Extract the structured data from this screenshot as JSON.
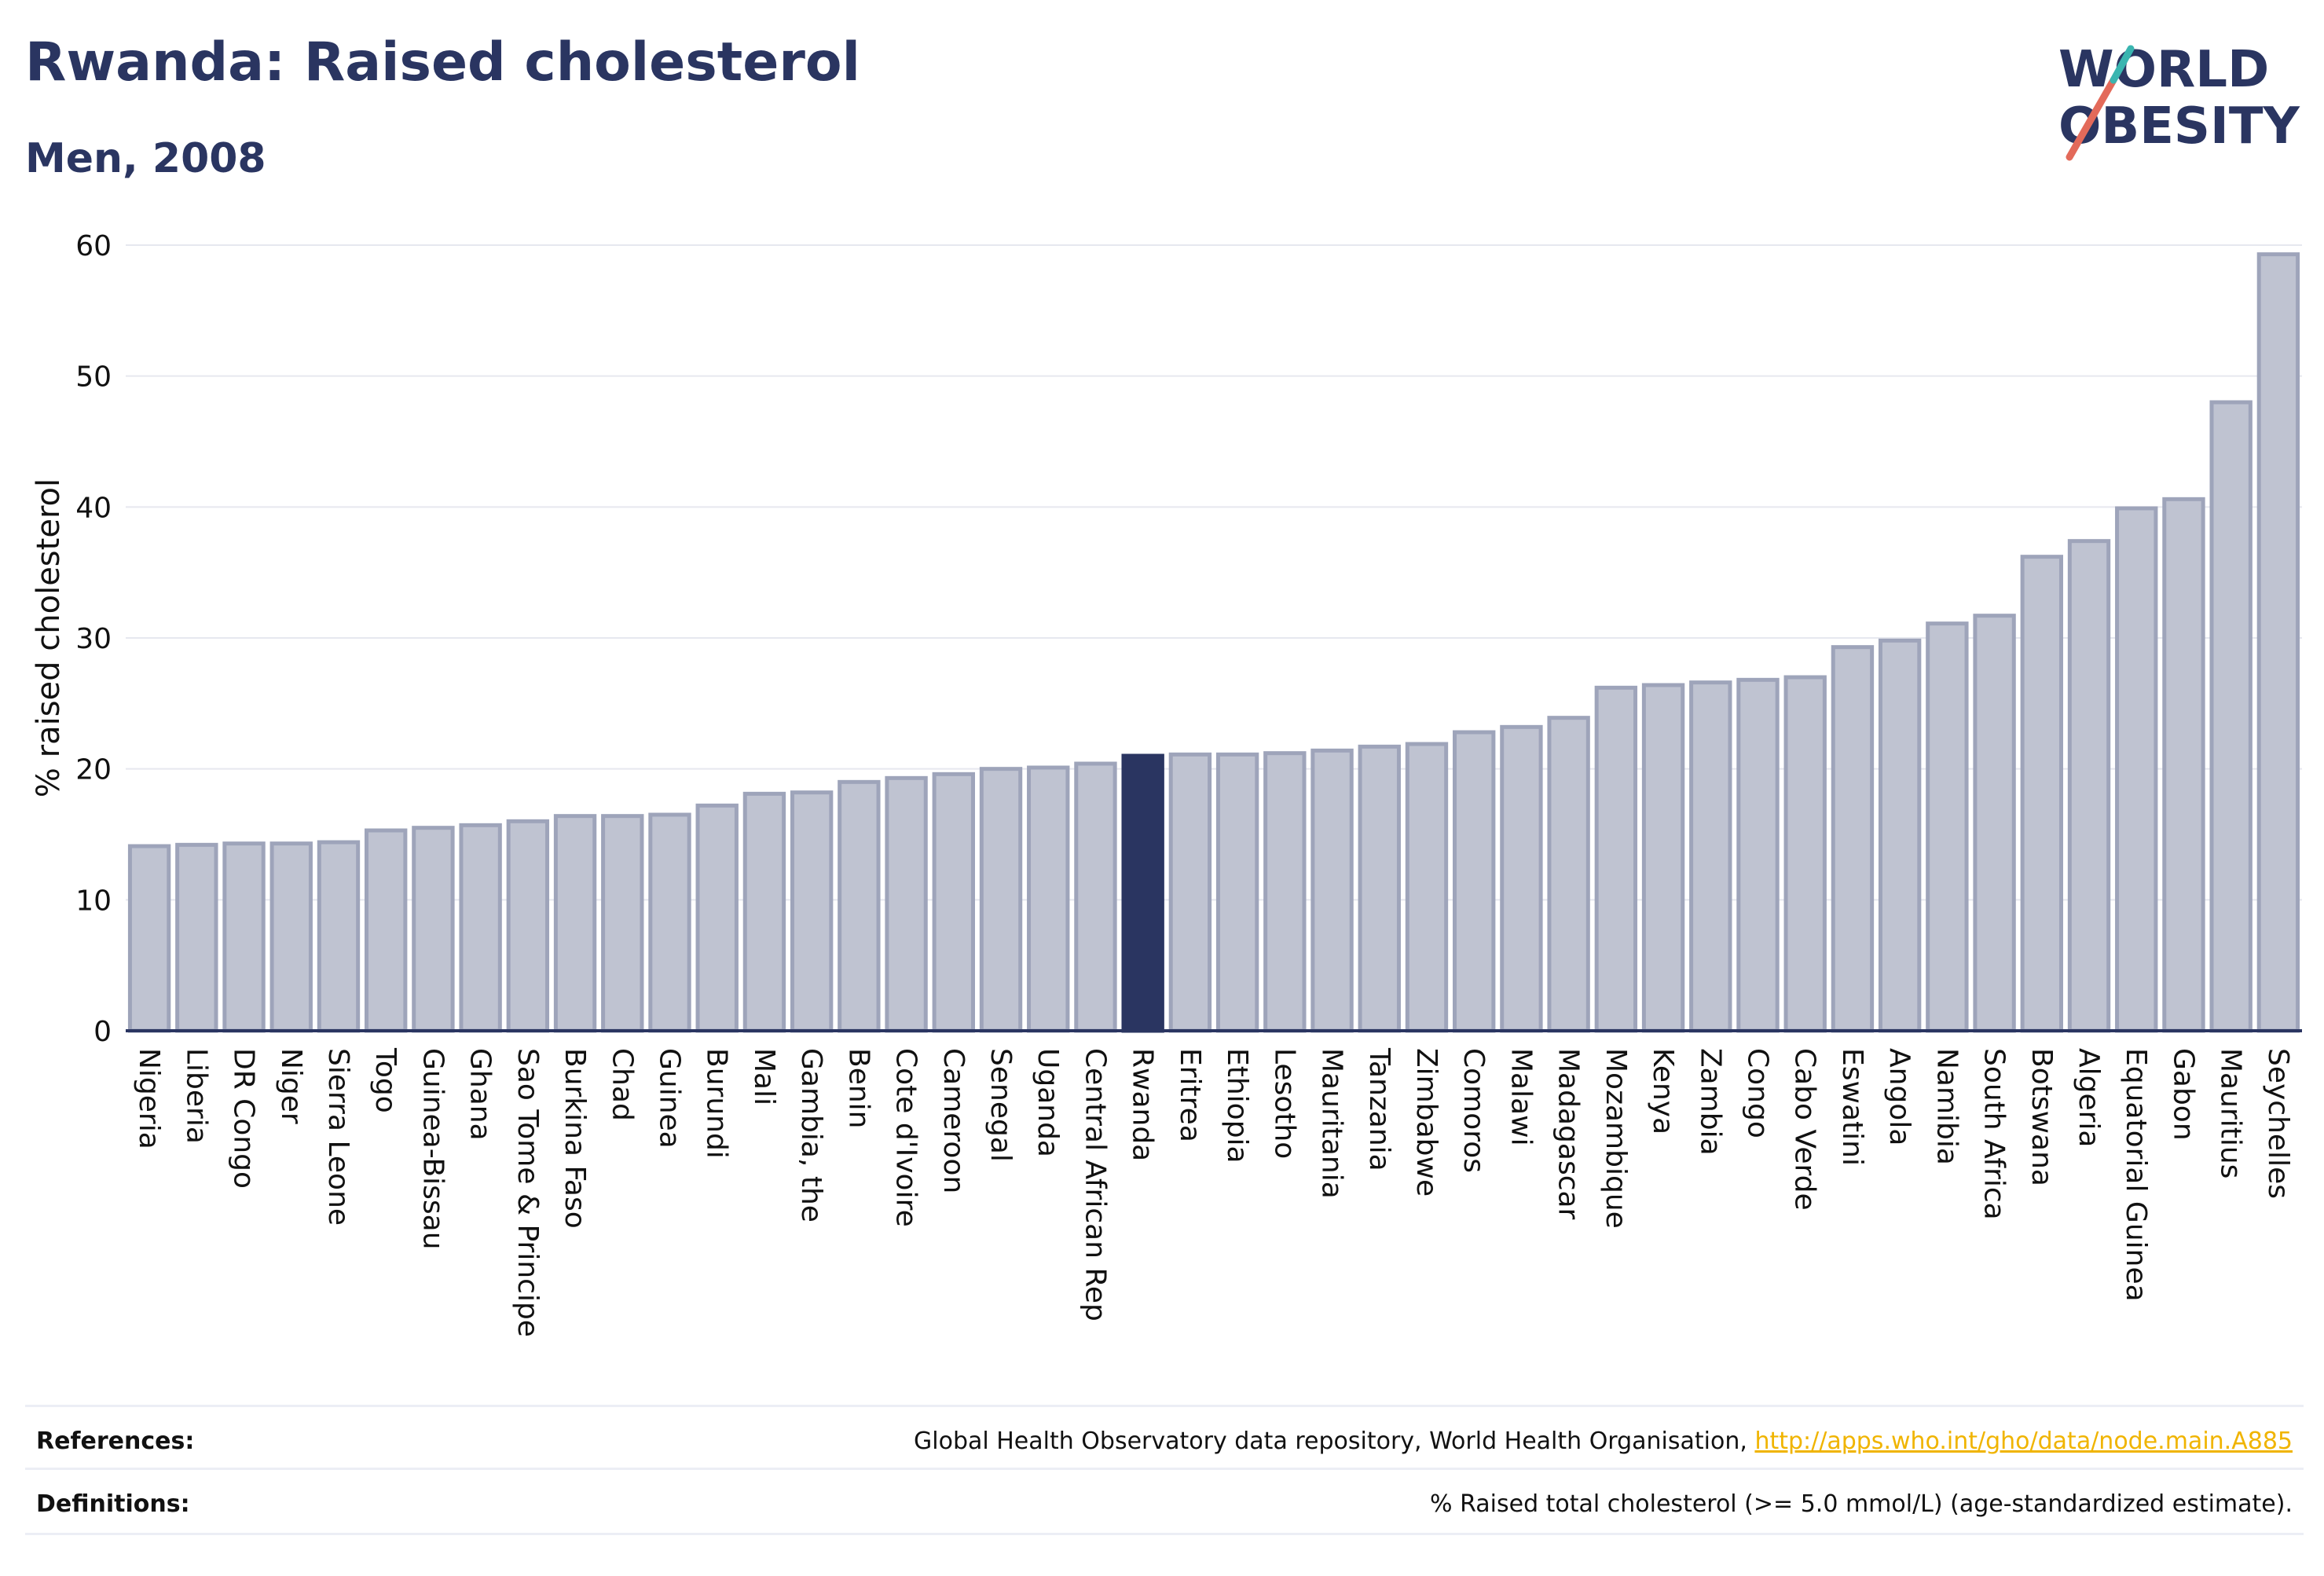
{
  "header": {
    "title": "Rwanda: Raised cholesterol",
    "subtitle": "Men, 2008"
  },
  "logo": {
    "line1": "WORLD",
    "line2": "OBESITY",
    "icon": "slash-logo-icon"
  },
  "colors": {
    "bar": "#bfc3d1",
    "bar_stroke": "#9ea4ba",
    "highlight": "#2a3561",
    "grid": "#e6e8ef",
    "axis": "#2a3561"
  },
  "chart_data": {
    "type": "bar",
    "title": "Rwanda: Raised cholesterol",
    "subtitle": "Men, 2008",
    "ylabel": "% raised cholesterol",
    "xlabel": "",
    "ylim": [
      0,
      60
    ],
    "yticks": [
      0,
      10,
      20,
      30,
      40,
      50,
      60
    ],
    "grid": true,
    "highlight": "Rwanda",
    "categories": [
      "Nigeria",
      "Liberia",
      "DR Congo",
      "Niger",
      "Sierra Leone",
      "Togo",
      "Guinea-Bissau",
      "Ghana",
      "Sao Tome & Principe",
      "Burkina Faso",
      "Chad",
      "Guinea",
      "Burundi",
      "Mali",
      "Gambia, the",
      "Benin",
      "Cote d'Ivoire",
      "Cameroon",
      "Senegal",
      "Uganda",
      "Central African Rep",
      "Rwanda",
      "Eritrea",
      "Ethiopia",
      "Lesotho",
      "Mauritania",
      "Tanzania",
      "Zimbabwe",
      "Comoros",
      "Malawi",
      "Madagascar",
      "Mozambique",
      "Kenya",
      "Zambia",
      "Congo",
      "Cabo Verde",
      "Eswatini",
      "Angola",
      "Namibia",
      "South Africa",
      "Botswana",
      "Algeria",
      "Equatorial Guinea",
      "Gabon",
      "Mauritius",
      "Seychelles"
    ],
    "values": [
      14.1,
      14.2,
      14.3,
      14.3,
      14.4,
      15.3,
      15.5,
      15.7,
      16.0,
      16.4,
      16.4,
      16.5,
      17.2,
      18.1,
      18.2,
      19.0,
      19.3,
      19.6,
      20.0,
      20.1,
      20.4,
      21.0,
      21.1,
      21.1,
      21.2,
      21.4,
      21.7,
      21.9,
      22.8,
      23.2,
      23.9,
      26.2,
      26.4,
      26.6,
      26.8,
      27.0,
      29.3,
      29.8,
      31.1,
      31.7,
      36.2,
      37.4,
      39.9,
      40.6,
      48.0,
      59.3
    ]
  },
  "footer": {
    "references_label": "References:",
    "references_text": "Global Health Observatory data repository, World Health Organisation, ",
    "references_link": "http://apps.who.int/gho/data/node.main.A885",
    "definitions_label": "Definitions:",
    "definitions_text": "% Raised total cholesterol (>= 5.0 mmol/L) (age-standardized estimate)."
  }
}
